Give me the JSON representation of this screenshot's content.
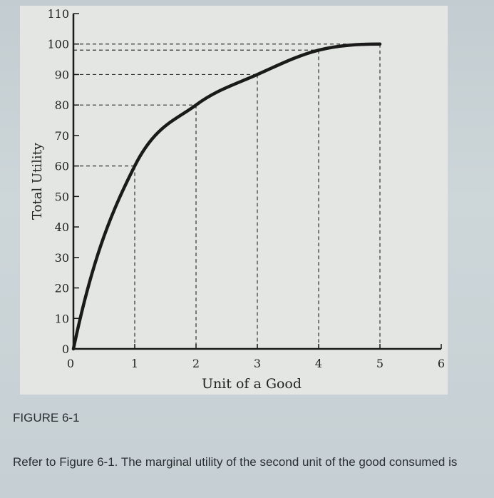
{
  "figure": {
    "caption": "FIGURE 6-1",
    "question": "Refer to Figure 6-1. The marginal utility of the second unit of the good consumed is"
  },
  "chart_data": {
    "type": "line",
    "xlabel": "Unit of a Good",
    "ylabel": "Total Utility",
    "xlim": [
      0,
      6
    ],
    "ylim": [
      0,
      110
    ],
    "x_ticks": [
      "0",
      "1",
      "2",
      "3",
      "4",
      "5",
      "6"
    ],
    "y_ticks": [
      "0",
      "10",
      "20",
      "30",
      "40",
      "50",
      "60",
      "70",
      "80",
      "90",
      "100",
      "110"
    ],
    "series": [
      {
        "x": [
          0,
          1,
          2,
          3,
          4,
          5
        ],
        "y": [
          0,
          60,
          80,
          90,
          98,
          100
        ]
      }
    ],
    "reference_points": [
      {
        "x": 1,
        "y": 60
      },
      {
        "x": 2,
        "y": 80
      },
      {
        "x": 3,
        "y": 90
      },
      {
        "x": 4,
        "y": 98
      },
      {
        "x": 5,
        "y": 100
      }
    ],
    "grid": false,
    "guide_lines": "dashed",
    "line_color": "#1a1a1a",
    "axis_color": "#1a1a1a"
  }
}
